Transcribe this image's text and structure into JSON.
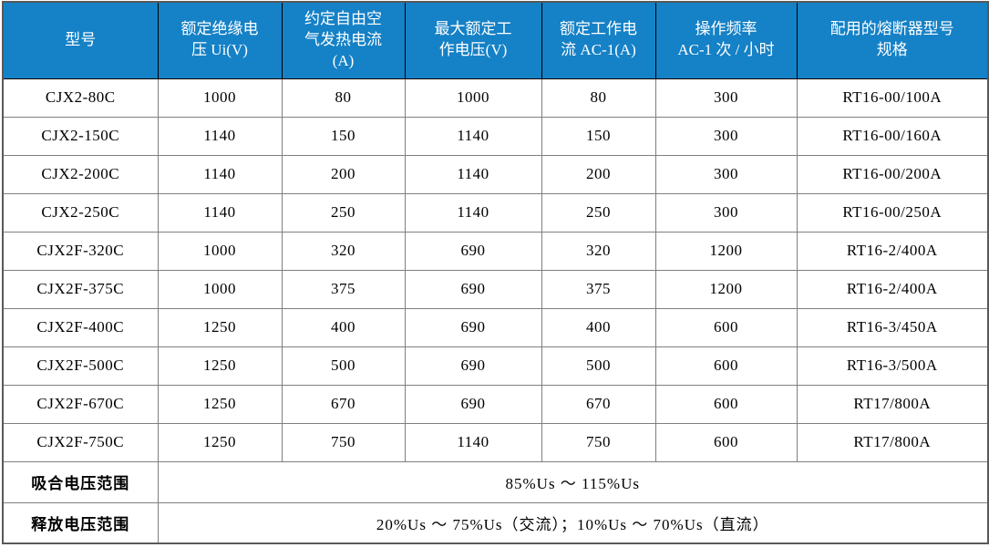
{
  "table": {
    "columns": [
      {
        "label": "型号"
      },
      {
        "label": "额定绝缘电\n压 Ui(V)"
      },
      {
        "label": "约定自由空\n气发热电流\n(A)"
      },
      {
        "label": "最大额定工\n作电压(V)"
      },
      {
        "label": "额定工作电\n流 AC-1(A)"
      },
      {
        "label": "操作频率\nAC-1 次 / 小时"
      },
      {
        "label": "配用的熔断器型号\n规格"
      }
    ],
    "rows": [
      [
        "CJX2-80C",
        "1000",
        "80",
        "1000",
        "80",
        "300",
        "RT16-00/100A"
      ],
      [
        "CJX2-150C",
        "1140",
        "150",
        "1140",
        "150",
        "300",
        "RT16-00/160A"
      ],
      [
        "CJX2-200C",
        "1140",
        "200",
        "1140",
        "200",
        "300",
        "RT16-00/200A"
      ],
      [
        "CJX2-250C",
        "1140",
        "250",
        "1140",
        "250",
        "300",
        "RT16-00/250A"
      ],
      [
        "CJX2F-320C",
        "1000",
        "320",
        "690",
        "320",
        "1200",
        "RT16-2/400A"
      ],
      [
        "CJX2F-375C",
        "1000",
        "375",
        "690",
        "375",
        "1200",
        "RT16-2/400A"
      ],
      [
        "CJX2F-400C",
        "1250",
        "400",
        "690",
        "400",
        "600",
        "RT16-3/450A"
      ],
      [
        "CJX2F-500C",
        "1250",
        "500",
        "690",
        "500",
        "600",
        "RT16-3/500A"
      ],
      [
        "CJX2F-670C",
        "1250",
        "670",
        "690",
        "670",
        "600",
        "RT17/800A"
      ],
      [
        "CJX2F-750C",
        "1250",
        "750",
        "1140",
        "750",
        "600",
        "RT17/800A"
      ]
    ],
    "footer_rows": [
      {
        "label": "吸合电压范围",
        "value": "85%Us ～ 115%Us"
      },
      {
        "label": "释放电压范围",
        "value": "20%Us ～ 75%Us（交流）；10%Us ～ 70%Us（直流）"
      }
    ]
  },
  "colors": {
    "header_bg": "#1581C6",
    "header_text": "#FFFFFF",
    "header_divider": "#000000",
    "body_border": "#7F7F7F",
    "outer_border": "#595959",
    "body_text": "#000000",
    "row_bg": "#FFFFFF"
  }
}
